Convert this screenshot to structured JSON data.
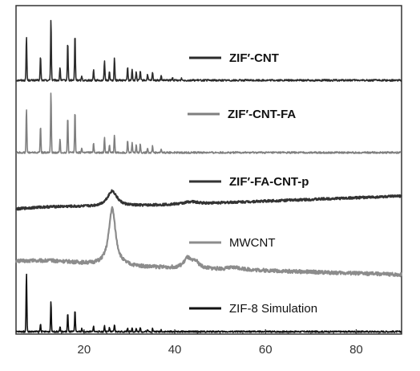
{
  "chart_data": {
    "type": "line",
    "title": "",
    "xlabel": "",
    "ylabel": "",
    "xlim": [
      5,
      90
    ],
    "x_ticks": [
      20,
      40,
      60,
      80
    ],
    "x_tick_labels": [
      "20",
      "40",
      "60",
      "80"
    ],
    "grid": false,
    "legend_placement": "inline, beside each trace (right of center)",
    "series": [
      {
        "name": "ZIF′-CNT",
        "color": "#2b2b2b",
        "bold_label": true,
        "kind": "crystalline",
        "peaks": [
          [
            7.3,
            1.0
          ],
          [
            10.4,
            0.55
          ],
          [
            12.7,
            1.4
          ],
          [
            14.7,
            0.3
          ],
          [
            16.4,
            0.88
          ],
          [
            18.0,
            1.05
          ],
          [
            19.5,
            0.1
          ],
          [
            22.1,
            0.26
          ],
          [
            24.5,
            0.45
          ],
          [
            25.6,
            0.2
          ],
          [
            26.7,
            0.5
          ],
          [
            29.6,
            0.3
          ],
          [
            30.6,
            0.26
          ],
          [
            31.5,
            0.2
          ],
          [
            32.4,
            0.22
          ],
          [
            34.0,
            0.14
          ],
          [
            35.1,
            0.18
          ],
          [
            37.0,
            0.1
          ],
          [
            39.5,
            0.06
          ],
          [
            41.5,
            0.05
          ]
        ],
        "baseline_slope": 0.0
      },
      {
        "name": "ZIF′-CNT-FA",
        "color": "#7f7f7f",
        "bold_label": true,
        "kind": "crystalline",
        "peaks": [
          [
            7.3,
            1.0
          ],
          [
            10.4,
            0.6
          ],
          [
            12.7,
            1.4
          ],
          [
            14.7,
            0.3
          ],
          [
            16.4,
            0.8
          ],
          [
            18.0,
            0.95
          ],
          [
            19.5,
            0.1
          ],
          [
            22.1,
            0.22
          ],
          [
            24.5,
            0.35
          ],
          [
            25.6,
            0.18
          ],
          [
            26.7,
            0.4
          ],
          [
            29.6,
            0.28
          ],
          [
            30.6,
            0.24
          ],
          [
            31.5,
            0.18
          ],
          [
            32.4,
            0.2
          ],
          [
            34.0,
            0.12
          ],
          [
            35.1,
            0.15
          ],
          [
            37.0,
            0.08
          ]
        ],
        "baseline_slope": 0.0
      },
      {
        "name": "ZIF′-FA-CNT-p",
        "color": "#333333",
        "bold_label": true,
        "kind": "amorphous",
        "peaks": [
          [
            26.2,
            0.55,
            1.3
          ],
          [
            43.5,
            0.08,
            1.6
          ]
        ],
        "baseline_slope": 0.12
      },
      {
        "name": "MWCNT",
        "color": "#8c8c8c",
        "bold_label": false,
        "kind": "amorphous",
        "peaks": [
          [
            26.2,
            1.3,
            0.9
          ],
          [
            42.8,
            0.22,
            0.9
          ],
          [
            44.6,
            0.14,
            0.9
          ],
          [
            53.5,
            0.05,
            2.0
          ]
        ],
        "baseline_slope": -0.06
      },
      {
        "name": "ZIF-8 Simulation",
        "color": "#111111",
        "bold_label": false,
        "kind": "crystalline",
        "peaks": [
          [
            7.3,
            1.55
          ],
          [
            10.4,
            0.2
          ],
          [
            12.7,
            0.8
          ],
          [
            14.7,
            0.13
          ],
          [
            16.4,
            0.48
          ],
          [
            18.0,
            0.55
          ],
          [
            19.5,
            0.08
          ],
          [
            22.1,
            0.14
          ],
          [
            24.5,
            0.16
          ],
          [
            25.6,
            0.1
          ],
          [
            26.7,
            0.18
          ],
          [
            29.6,
            0.1
          ],
          [
            30.6,
            0.1
          ],
          [
            31.5,
            0.08
          ],
          [
            32.4,
            0.1
          ],
          [
            34.0,
            0.06
          ],
          [
            35.1,
            0.08
          ],
          [
            37.0,
            0.05
          ]
        ],
        "baseline_slope": 0.0
      }
    ]
  }
}
